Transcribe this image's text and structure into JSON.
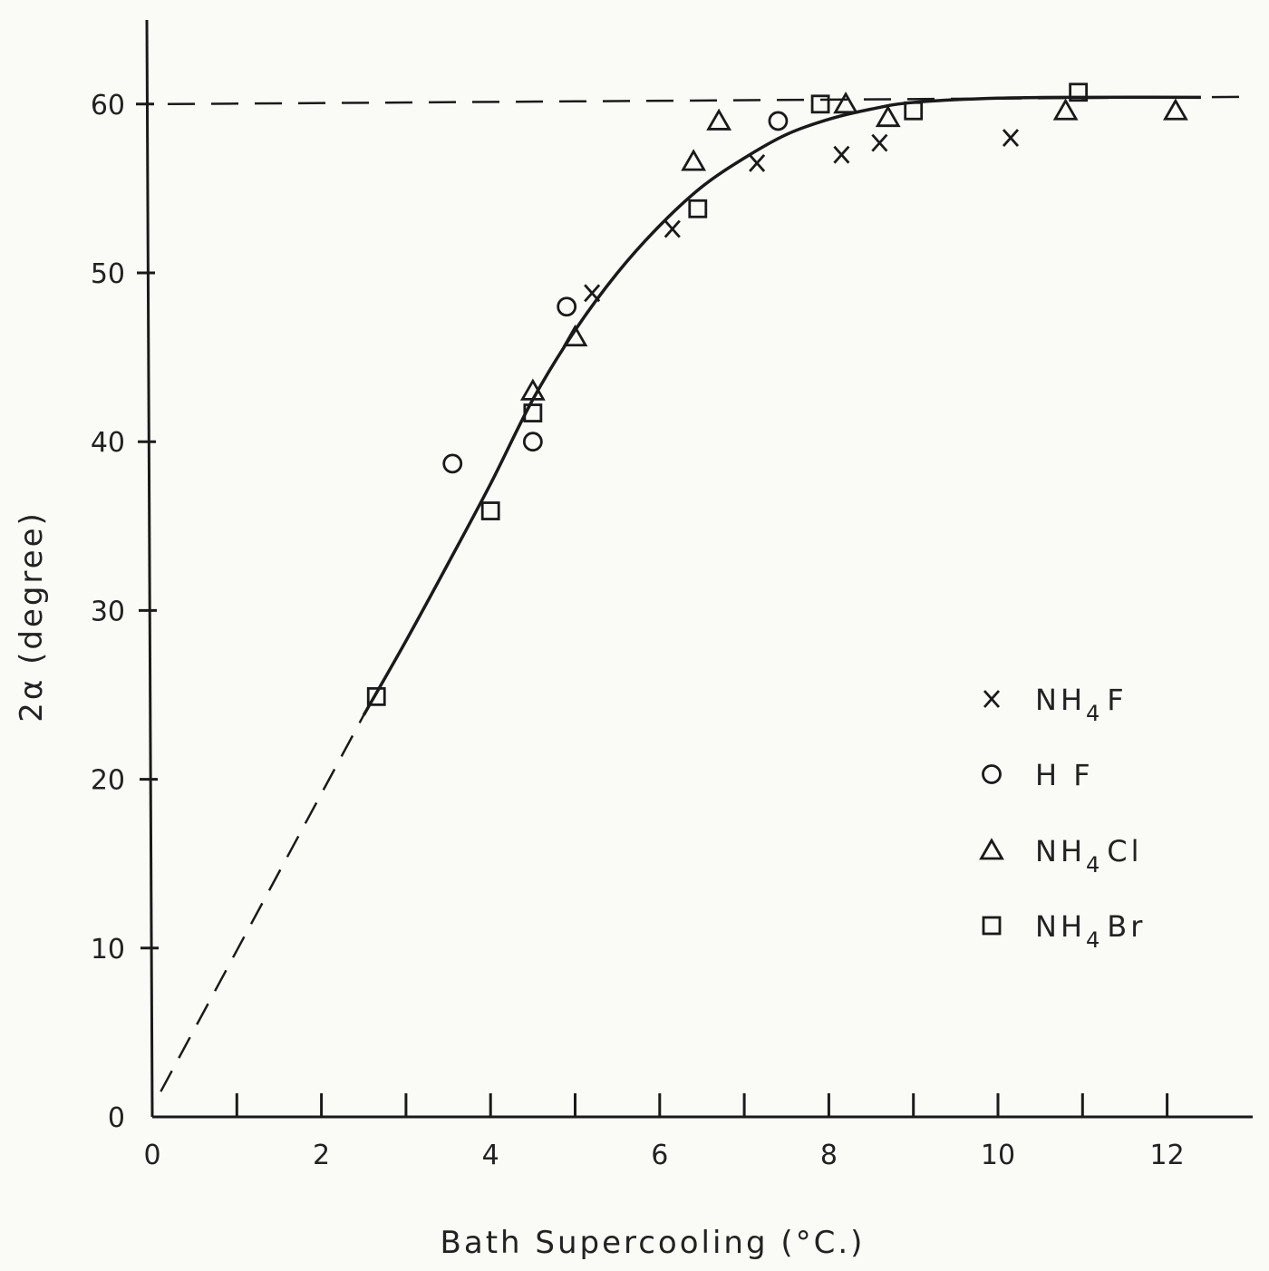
{
  "chart_data": {
    "type": "scatter",
    "title": "",
    "xlabel": "Bath Supercooling (°C.)",
    "ylabel": "2α (degree)",
    "xlim": [
      0,
      13
    ],
    "ylim": [
      0,
      65
    ],
    "x_ticks": [
      0,
      2,
      4,
      6,
      8,
      10,
      12
    ],
    "x_minor_ticks": [
      1,
      3,
      5,
      7,
      9,
      11
    ],
    "y_ticks": [
      0,
      10,
      20,
      30,
      40,
      50,
      60
    ],
    "grid": false,
    "legend_position": "right",
    "series": [
      {
        "name": "NH4F",
        "legend_main": "NH",
        "legend_sub": "4",
        "legend_tail": "F",
        "marker": "x",
        "points": [
          [
            5.2,
            48.8
          ],
          [
            6.15,
            52.6
          ],
          [
            7.15,
            56.5
          ],
          [
            8.15,
            57.0
          ],
          [
            8.6,
            57.7
          ],
          [
            10.15,
            58.0
          ]
        ]
      },
      {
        "name": "HF",
        "legend_main": "H F",
        "legend_sub": "",
        "legend_tail": "",
        "marker": "circle",
        "points": [
          [
            3.55,
            38.7
          ],
          [
            4.5,
            40.0
          ],
          [
            4.9,
            48.0
          ],
          [
            7.4,
            59.0
          ]
        ]
      },
      {
        "name": "NH4Cl",
        "legend_main": "NH",
        "legend_sub": "4",
        "legend_tail": "Cl",
        "marker": "triangle",
        "points": [
          [
            4.5,
            43.0
          ],
          [
            5.0,
            46.2
          ],
          [
            6.4,
            56.6
          ],
          [
            6.7,
            59.0
          ],
          [
            8.2,
            60.0
          ],
          [
            8.7,
            59.2
          ],
          [
            10.8,
            59.6
          ],
          [
            12.1,
            59.6
          ]
        ]
      },
      {
        "name": "NH4Br",
        "legend_main": "NH",
        "legend_sub": "4",
        "legend_tail": "Br",
        "marker": "square",
        "points": [
          [
            2.65,
            24.9
          ],
          [
            4.0,
            35.9
          ],
          [
            4.5,
            41.7
          ],
          [
            6.45,
            53.8
          ],
          [
            7.9,
            60.0
          ],
          [
            9.0,
            59.6
          ],
          [
            10.95,
            60.7
          ]
        ]
      }
    ],
    "reference_line": {
      "y": 60,
      "style": "dashed"
    },
    "fit_curve": {
      "style": "solid",
      "points": [
        [
          2.5,
          23.8
        ],
        [
          3.0,
          28.2
        ],
        [
          3.5,
          32.8
        ],
        [
          4.0,
          37.5
        ],
        [
          4.5,
          42.5
        ],
        [
          5.0,
          46.6
        ],
        [
          5.5,
          50.0
        ],
        [
          6.0,
          52.8
        ],
        [
          6.5,
          55.1
        ],
        [
          7.0,
          56.8
        ],
        [
          7.5,
          58.2
        ],
        [
          8.0,
          59.1
        ],
        [
          8.5,
          59.7
        ],
        [
          9.0,
          60.1
        ],
        [
          10.0,
          60.35
        ],
        [
          11.0,
          60.4
        ],
        [
          12.4,
          60.4
        ]
      ]
    },
    "extrapolation": {
      "style": "dashed",
      "points": [
        [
          0.1,
          1.5
        ],
        [
          2.5,
          23.8
        ]
      ]
    }
  }
}
